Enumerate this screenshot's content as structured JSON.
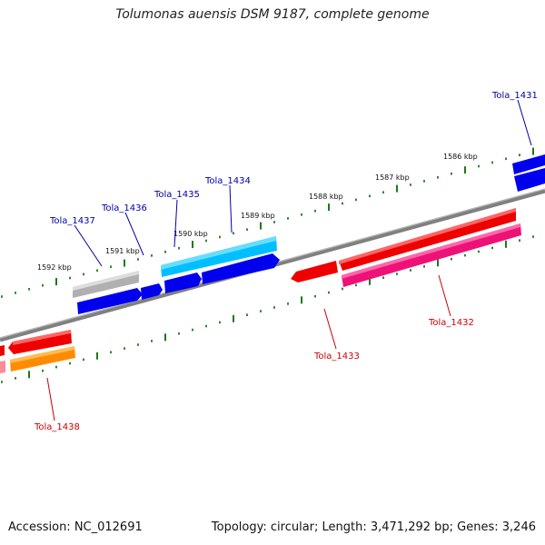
{
  "title": "Tolumonas auensis DSM 9187, complete genome",
  "footer": {
    "accession": "Accession: NC_012691",
    "summary": "Topology: circular; Length: 3,471,292 bp; Genes: 3,246"
  },
  "colors": {
    "backbone": "#808080",
    "tick": "#1a7a1a",
    "label_forward": "#0000aa",
    "label_reverse": "#cc0000"
  },
  "scale_labels": [
    "1586 kbp",
    "1587 kbp",
    "1588 kbp",
    "1589 kbp",
    "1590 kbp",
    "1591 kbp",
    "1592 kbp"
  ],
  "genes": [
    {
      "name": "Tola_1431",
      "strand": "+",
      "color": "#0000ee"
    },
    {
      "name": "Tola_1434",
      "strand": "+",
      "color": "#00bfff"
    },
    {
      "name": "Tola_1435",
      "strand": "+",
      "color": "#0000ee"
    },
    {
      "name": "Tola_1436",
      "strand": "+",
      "color": "#0000ee"
    },
    {
      "name": "Tola_1437",
      "strand": "+",
      "color": "#b0b0b0"
    },
    {
      "name": "Tola_1432",
      "strand": "-",
      "color": "#ee1177"
    },
    {
      "name": "Tola_1433",
      "strand": "-",
      "color": "#ee0000"
    },
    {
      "name": "Tola_1438",
      "strand": "-",
      "color": "#ff8c00"
    }
  ]
}
